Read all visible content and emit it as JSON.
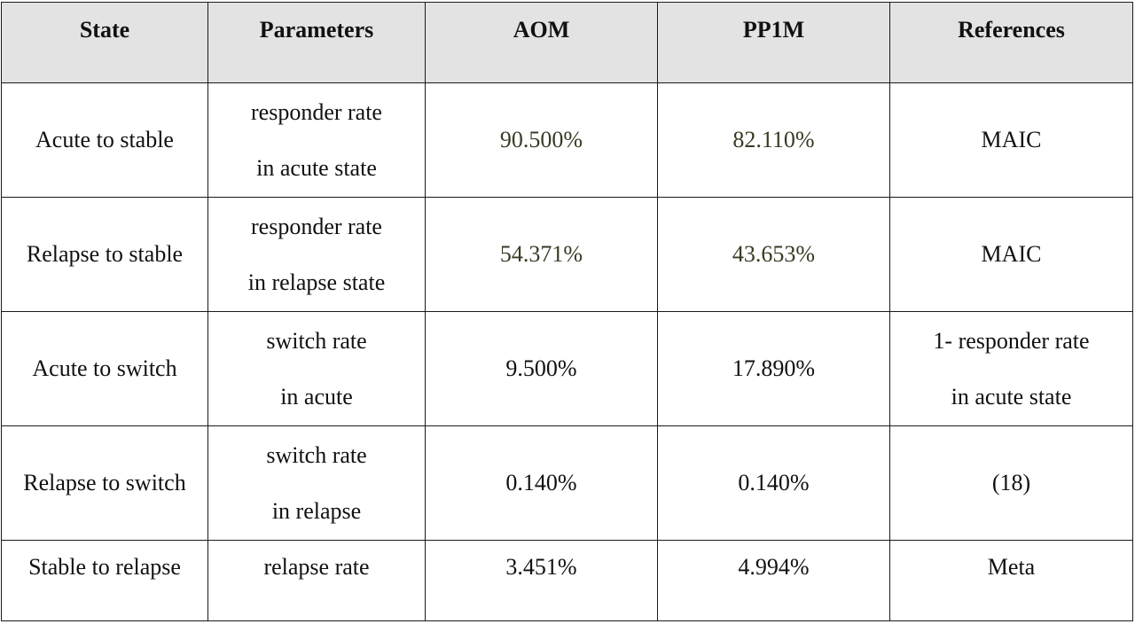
{
  "table": {
    "headers": [
      "State",
      "Parameters",
      "AOM",
      "PP1M",
      "References"
    ],
    "rows": [
      {
        "state": "Acute to stable",
        "parameters": [
          "responder rate",
          "in acute state"
        ],
        "aom": "90.500%",
        "pp1m": "82.110%",
        "references": [
          "MAIC"
        ]
      },
      {
        "state": "Relapse to stable",
        "parameters": [
          "responder rate",
          "in relapse state"
        ],
        "aom": "54.371%",
        "pp1m": "43.653%",
        "references": [
          "MAIC"
        ]
      },
      {
        "state": "Acute to switch",
        "parameters": [
          "switch rate",
          "in acute"
        ],
        "aom": "9.500%",
        "pp1m": "17.890%",
        "references": [
          "1- responder rate",
          "in acute state"
        ]
      },
      {
        "state": "Relapse to switch",
        "parameters": [
          "switch rate",
          "in relapse"
        ],
        "aom": "0.140%",
        "pp1m": "0.140%",
        "references": [
          "(18)"
        ]
      },
      {
        "state": "Stable to relapse",
        "parameters": [
          "relapse rate"
        ],
        "aom": "3.451%",
        "pp1m": "4.994%",
        "references": [
          "Meta"
        ]
      }
    ]
  },
  "colors": {
    "header_bg": "#e3e3e3",
    "border": "#1a1a1a",
    "text": "#111111",
    "values_text": "#3a3a25"
  }
}
